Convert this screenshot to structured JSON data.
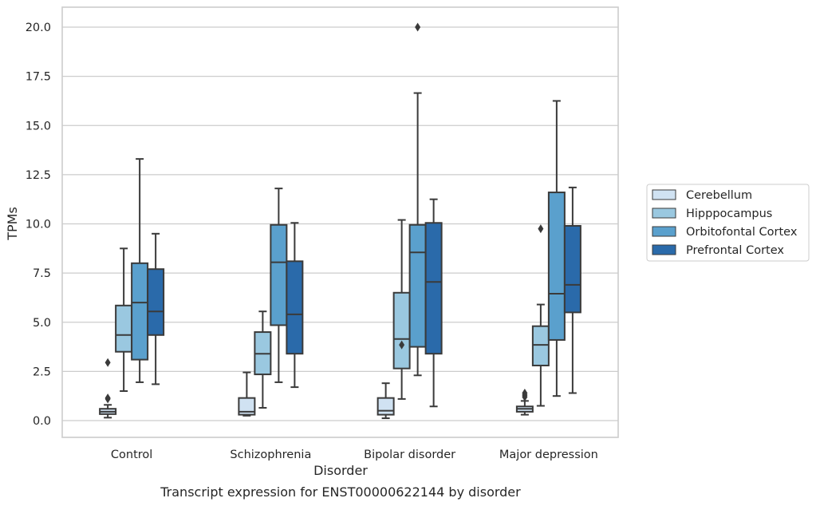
{
  "caption": "Transcript expression for ENST00000622144 by disorder",
  "chart_data": {
    "type": "box",
    "xlabel": "Disorder",
    "ylabel": "TPMs",
    "ylim": [
      -0.8,
      21
    ],
    "yticks": [
      "0.0",
      "2.5",
      "5.0",
      "7.5",
      "10.0",
      "12.5",
      "15.0",
      "17.5",
      "20.0"
    ],
    "categories": [
      "Control",
      "Schizophrenia",
      "Bipolar disorder",
      "Major depression"
    ],
    "grid": "horizontal",
    "legend_position": "right",
    "series": [
      {
        "name": "Cerebellum",
        "color": "#d0e2f2",
        "boxes": [
          {
            "whislo": 0.15,
            "q1": 0.33,
            "med": 0.45,
            "q3": 0.6,
            "whishi": 0.8,
            "fliers": [
              1.1,
              1.15,
              2.95
            ]
          },
          {
            "whislo": 0.25,
            "q1": 0.3,
            "med": 0.45,
            "q3": 1.15,
            "whishi": 2.45,
            "fliers": []
          },
          {
            "whislo": 0.12,
            "q1": 0.3,
            "med": 0.5,
            "q3": 1.15,
            "whishi": 1.9,
            "fliers": []
          },
          {
            "whislo": 0.3,
            "q1": 0.45,
            "med": 0.6,
            "q3": 0.72,
            "whishi": 1.0,
            "fliers": [
              1.2,
              1.3,
              1.4
            ]
          }
        ]
      },
      {
        "name": "Hipppocampus",
        "color": "#9ac8e0",
        "boxes": [
          {
            "whislo": 1.5,
            "q1": 3.5,
            "med": 4.35,
            "q3": 5.85,
            "whishi": 8.75,
            "fliers": []
          },
          {
            "whislo": 0.65,
            "q1": 2.35,
            "med": 3.4,
            "q3": 4.5,
            "whishi": 5.55,
            "fliers": []
          },
          {
            "whislo": 1.1,
            "q1": 2.65,
            "med": 4.15,
            "q3": 6.5,
            "whishi": 10.2,
            "fliers": [
              3.85
            ]
          },
          {
            "whislo": 0.75,
            "q1": 2.8,
            "med": 3.85,
            "q3": 4.8,
            "whishi": 5.9,
            "fliers": [
              9.75
            ]
          }
        ]
      },
      {
        "name": "Orbitofontal Cortex",
        "color": "#5aa0cd",
        "boxes": [
          {
            "whislo": 1.95,
            "q1": 3.1,
            "med": 6.0,
            "q3": 8.0,
            "whishi": 13.3,
            "fliers": []
          },
          {
            "whislo": 1.95,
            "q1": 4.85,
            "med": 8.05,
            "q3": 9.95,
            "whishi": 11.8,
            "fliers": []
          },
          {
            "whislo": 2.3,
            "q1": 3.75,
            "med": 8.55,
            "q3": 9.95,
            "whishi": 16.65,
            "fliers": [
              20.0
            ]
          },
          {
            "whislo": 1.25,
            "q1": 4.1,
            "med": 6.45,
            "q3": 11.6,
            "whishi": 16.25,
            "fliers": []
          }
        ]
      },
      {
        "name": "Prefrontal Cortex",
        "color": "#2a6aaa",
        "boxes": [
          {
            "whislo": 1.85,
            "q1": 4.35,
            "med": 5.55,
            "q3": 7.7,
            "whishi": 9.5,
            "fliers": []
          },
          {
            "whislo": 1.7,
            "q1": 3.4,
            "med": 5.4,
            "q3": 8.1,
            "whishi": 10.05,
            "fliers": []
          },
          {
            "whislo": 0.72,
            "q1": 3.4,
            "med": 7.05,
            "q3": 10.05,
            "whishi": 11.25,
            "fliers": []
          },
          {
            "whislo": 1.4,
            "q1": 5.5,
            "med": 6.9,
            "q3": 9.9,
            "whishi": 11.85,
            "fliers": []
          }
        ]
      }
    ]
  }
}
